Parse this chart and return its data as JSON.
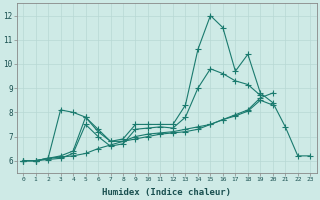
{
  "xlabel": "Humidex (Indice chaleur)",
  "bg_color": "#ceeae6",
  "grid_color": "#b8d8d4",
  "line_color": "#1a7a6e",
  "xlim": [
    -0.5,
    23.5
  ],
  "ylim": [
    5.5,
    12.5
  ],
  "xticks": [
    0,
    1,
    2,
    3,
    4,
    5,
    6,
    7,
    8,
    9,
    10,
    11,
    12,
    13,
    14,
    15,
    16,
    17,
    18,
    19,
    20,
    21,
    22,
    23
  ],
  "yticks": [
    6,
    7,
    8,
    9,
    10,
    11,
    12
  ],
  "series": [
    {
      "x": [
        0,
        1,
        2,
        3,
        4,
        5,
        6,
        7,
        8,
        9,
        10,
        11,
        12,
        13,
        14,
        15,
        16,
        17,
        18,
        19,
        20,
        21,
        22,
        23
      ],
      "y": [
        6.0,
        6.0,
        6.1,
        8.1,
        8.0,
        7.8,
        7.2,
        6.8,
        6.9,
        7.5,
        7.5,
        7.5,
        7.5,
        8.3,
        10.6,
        12.0,
        11.5,
        9.7,
        10.4,
        8.8,
        8.4,
        7.4,
        6.2,
        6.2
      ]
    },
    {
      "x": [
        0,
        1,
        2,
        3,
        4,
        5,
        6,
        7,
        8,
        9,
        10,
        11,
        12,
        13,
        14,
        15,
        16,
        17,
        18,
        19,
        20,
        21,
        22,
        23
      ],
      "y": [
        6.0,
        6.0,
        6.1,
        6.15,
        6.2,
        6.3,
        6.5,
        6.65,
        6.8,
        6.9,
        7.0,
        7.1,
        7.15,
        7.2,
        7.3,
        7.5,
        7.7,
        7.9,
        8.1,
        8.6,
        8.8,
        null,
        null,
        null
      ]
    },
    {
      "x": [
        0,
        1,
        2,
        3,
        4,
        5,
        6,
        7,
        8,
        9,
        10,
        11,
        12,
        13,
        14,
        15,
        16,
        17,
        18,
        19,
        20,
        21,
        22,
        23
      ],
      "y": [
        6.0,
        6.0,
        6.1,
        6.2,
        6.4,
        7.8,
        7.3,
        6.8,
        6.8,
        7.0,
        7.1,
        7.15,
        7.2,
        7.3,
        7.4,
        7.5,
        7.7,
        7.85,
        8.05,
        8.5,
        8.3,
        null,
        null,
        null
      ]
    },
    {
      "x": [
        0,
        1,
        2,
        3,
        4,
        5,
        6,
        7,
        8,
        9,
        10,
        11,
        12,
        13,
        14,
        15,
        16,
        17,
        18,
        19,
        20,
        21,
        22,
        23
      ],
      "y": [
        6.0,
        6.0,
        6.05,
        6.1,
        6.3,
        7.5,
        7.0,
        6.6,
        6.7,
        7.3,
        7.35,
        7.4,
        7.35,
        7.8,
        9.0,
        9.8,
        9.6,
        9.3,
        9.15,
        8.7,
        null,
        null,
        null,
        null
      ]
    }
  ]
}
